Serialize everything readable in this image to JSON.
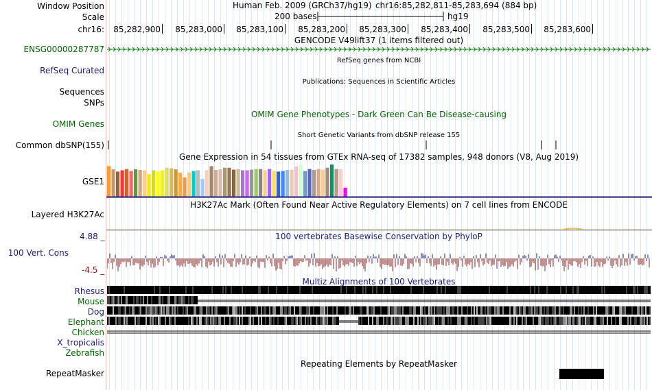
{
  "header": {
    "window_position_label": "Window Position",
    "scale_label": "Scale",
    "chrom_label": "chr16:",
    "assembly": "Human Feb. 2009 (GRCh37/hg19)",
    "position": "chr16:85,282,811-85,283,694 (884 bp)",
    "scale_text": "200 bases",
    "db": "hg19",
    "ruler_ticks": [
      "85,282,900",
      "85,283,000",
      "85,283,100",
      "85,283,200",
      "85,283,300",
      "85,283,400",
      "85,283,500",
      "85,283,600"
    ]
  },
  "tracks": {
    "gencode": {
      "title": "GENCODE V49lift37 (1 items filtered out)",
      "item": "ENSG00000287787"
    },
    "refseq": {
      "label": "RefSeq Curated",
      "title": "RefSeq genes from NCBI"
    },
    "publications": {
      "label": "Sequences",
      "title": "Publications: Sequences in Scientific Articles"
    },
    "snps": {
      "label": "SNPs"
    },
    "omim": {
      "label": "OMIM Genes",
      "title": "OMIM Gene Phenotypes - Dark Green Can Be Disease-causing"
    },
    "dbsnp": {
      "label": "Common dbSNP(155)",
      "title": "Short Genetic Variants from dbSNP release 155"
    },
    "gtex": {
      "label": "GSE1",
      "title": "Gene Expression in 54 tissues from GTEx RNA-seq of 17382 samples, 948 donors (V8, Aug 2019)"
    },
    "h3k27ac": {
      "label": "Layered H3K27Ac",
      "title": "H3K27Ac Mark (Often Found Near Active Regulatory Elements) on 7 cell lines from ENCODE"
    },
    "cons": {
      "label": "100 Vert. Cons",
      "max": "4.88 _",
      "min": "-4.5 _",
      "title": "100 vertebrates Basewise Conservation by PhyloP"
    },
    "multiz": {
      "title": "Multiz Alignments of 100 Vertebrates",
      "species": [
        "Rhesus",
        "Mouse",
        "Dog",
        "Elephant",
        "Chicken",
        "X_tropicalis",
        "Zebrafish"
      ]
    },
    "rmsk": {
      "label": "RepeatMasker",
      "title": "Repeating Elements by RepeatMasker"
    }
  },
  "gtex_values": [
    0.95,
    0.85,
    0.78,
    0.82,
    0.86,
    0.8,
    0.85,
    0.83,
    0.82,
    0.7,
    0.82,
    0.78,
    0.82,
    0.9,
    0.88,
    0.85,
    0.75,
    0.6,
    0.75,
    0.8,
    0.82,
    0.55,
    0.82,
    0.95,
    0.83,
    0.85,
    0.9,
    0.9,
    0.84,
    0.86,
    0.82,
    0.82,
    0.84,
    0.86,
    0.86,
    0.82,
    0.86,
    0.8,
    0.78,
    0.8,
    0.83,
    0.84,
    0.94,
    0.98,
    0.8,
    0.86,
    0.83,
    0.86,
    0.84,
    0.9,
    1.0,
    0.86,
    0.86,
    0.28
  ],
  "colors": {
    "green_label": "#006600",
    "navy_label": "#1a1a80",
    "brown_label": "#8b1a1a",
    "gencode": "#0a7d0a",
    "cons_pos": "#1a1a80",
    "cons_neg": "#8b2323",
    "grid": "#c8d6f0",
    "gtex": [
      "#ff9933",
      "#cc9966",
      "#996633",
      "#ff3333",
      "#cc6633",
      "#ff6666",
      "#669933",
      "#ccaa88",
      "#ffcc99",
      "#eeee00",
      "#dddd00",
      "#ffff00",
      "#eeee33",
      "#dddd66",
      "#ddbb55",
      "#cc9933",
      "#ffaa44",
      "#ee9955",
      "#ffcc66",
      "#00cccc",
      "#bbbbbb",
      "#99ccff",
      "#ffccbb",
      "#aa8866",
      "#ccaa99",
      "#ddbbaa",
      "#aa9966",
      "#997755",
      "#886644",
      "#ccbb99",
      "#aa77cc",
      "#cc66ff",
      "#999999",
      "#99cc66",
      "#888888",
      "#ffcc88",
      "#9966ff",
      "#ffdd55",
      "#3366cc",
      "#4488ff",
      "#99bbdd",
      "#eeccaa",
      "#ffbbcc",
      "#ccffcc",
      "#7799bb",
      "#5566cc",
      "#aa9999",
      "#ddaa88",
      "#ffcc99",
      "#aa8877",
      "#009966",
      "#bb9988",
      "#ffcccc",
      "#ff00ff"
    ]
  }
}
